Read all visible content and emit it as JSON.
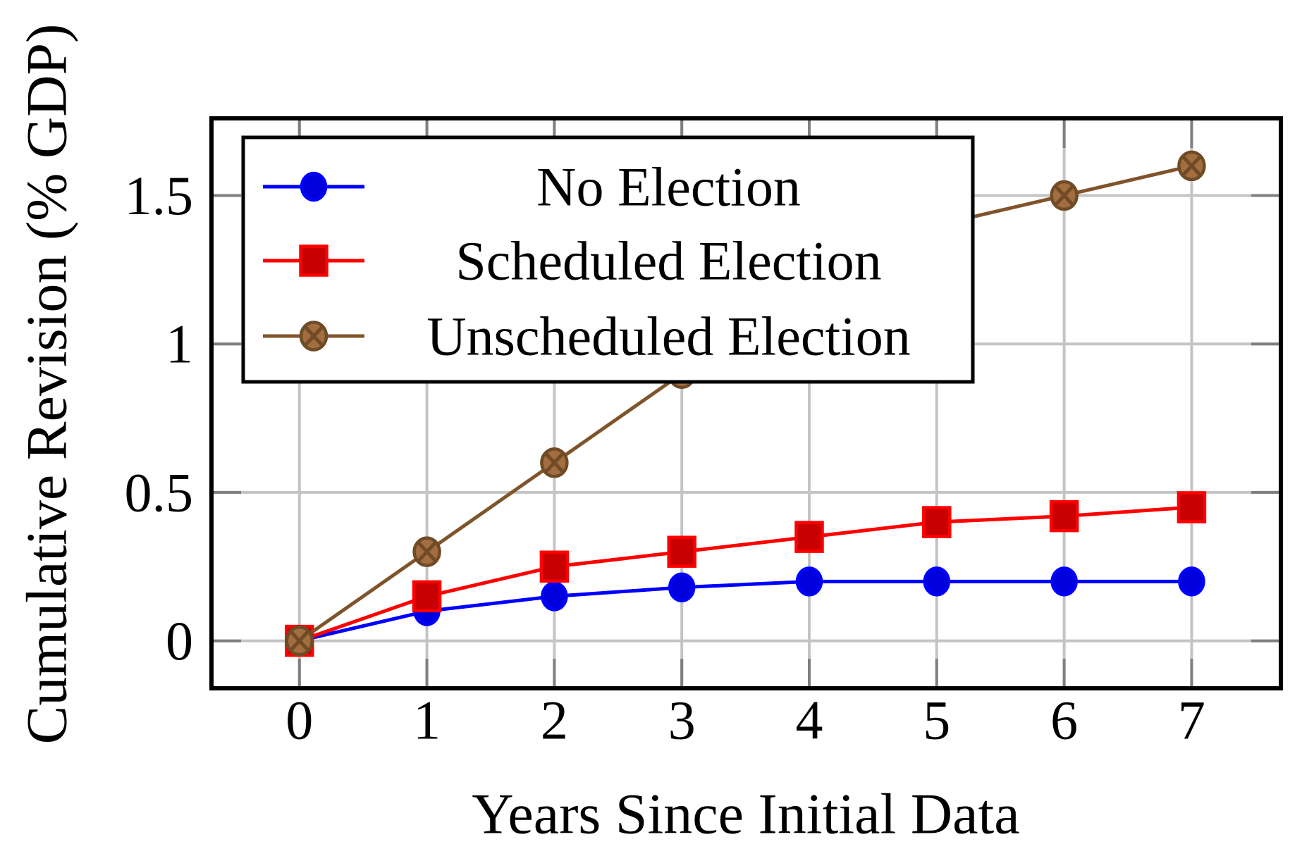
{
  "chart_data": {
    "type": "line",
    "x": [
      0,
      1,
      2,
      3,
      4,
      5,
      6,
      7
    ],
    "series": [
      {
        "name": "No Election",
        "marker": "circle",
        "color": "#0000FF",
        "marker_fill": "#0000DC",
        "marker_stroke": "#0000FF",
        "values": [
          0,
          0.1,
          0.15,
          0.18,
          0.2,
          0.2,
          0.2,
          0.2
        ]
      },
      {
        "name": "Scheduled Election",
        "marker": "square",
        "color": "#FF0000",
        "marker_fill": "#C80000",
        "marker_stroke": "#FF0000",
        "values": [
          0,
          0.15,
          0.25,
          0.3,
          0.35,
          0.4,
          0.42,
          0.45
        ]
      },
      {
        "name": "Unscheduled Election",
        "marker": "crossed-circle",
        "color": "#80542B",
        "marker_fill": "#A26D3F",
        "marker_stroke": "#6F4B26",
        "values": [
          0,
          0.3,
          0.6,
          0.9,
          1.2,
          1.4,
          1.5,
          1.6
        ]
      }
    ],
    "title": "",
    "xlabel": "Years Since Initial Data",
    "ylabel": "Cumulative Revision (% GDP)",
    "xticks": [
      0,
      1,
      2,
      3,
      4,
      5,
      6,
      7
    ],
    "xtick_labels": [
      "0",
      "1",
      "2",
      "3",
      "4",
      "5",
      "6",
      "7"
    ],
    "yticks": [
      0,
      0.5,
      1,
      1.5
    ],
    "ytick_labels": [
      "0",
      "0.5",
      "1",
      "1.5"
    ],
    "xlim": [
      -0.69,
      7.7
    ],
    "ylim": [
      -0.16,
      1.76
    ],
    "grid": true,
    "legend_position": "top-left-inside",
    "colors": {
      "background": "#FFFFFF",
      "grid": "#C4C4C4",
      "tick": "#7F7F7F",
      "axis": "#000000",
      "legend_border": "#000000",
      "legend_background": "#FFFFFF"
    }
  }
}
